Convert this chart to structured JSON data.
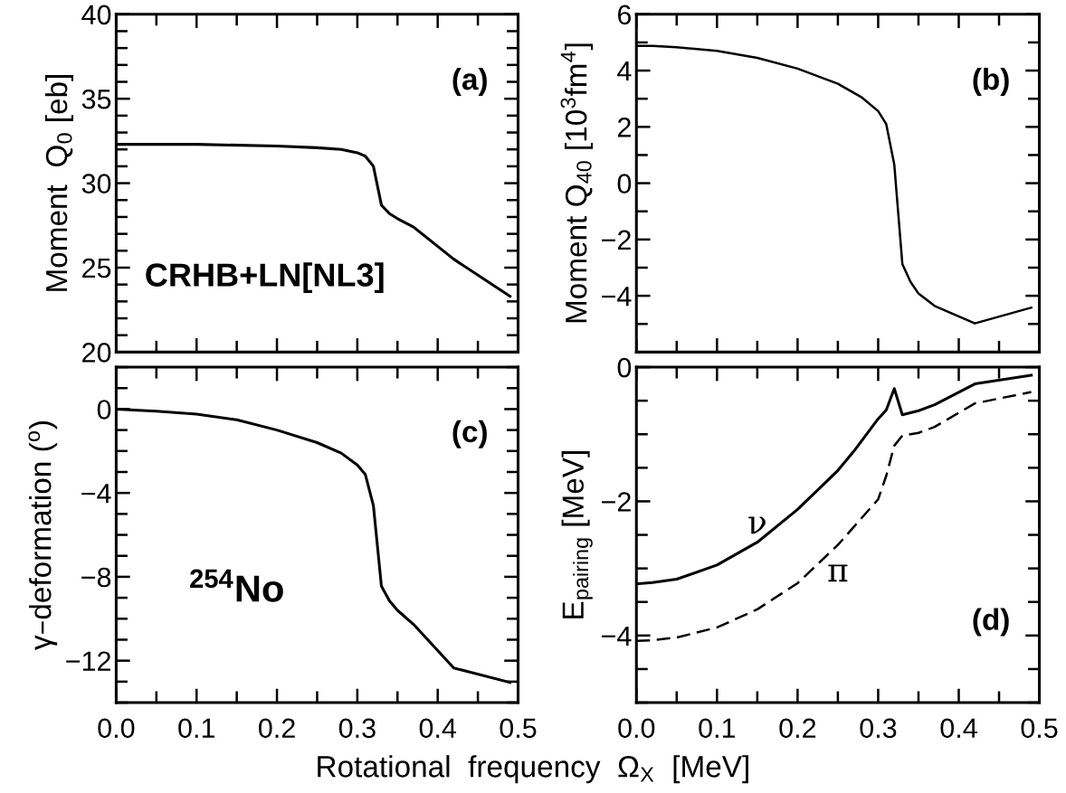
{
  "chart_data": [
    {
      "type": "line",
      "ylabel": "Moment  Q$_{0}$ [eb]",
      "annotations": [
        "(a)",
        "CRHB+LN[NL3]"
      ],
      "x": [
        0,
        0.1,
        0.2,
        0.25,
        0.28,
        0.3,
        0.31,
        0.32,
        0.33,
        0.34,
        0.35,
        0.37,
        0.42,
        0.49
      ],
      "series": [
        {
          "color": "#000000",
          "line_style": "solid",
          "values": [
            32.3,
            32.3,
            32.2,
            32.1,
            32.0,
            31.8,
            31.6,
            31.0,
            28.7,
            28.2,
            27.9,
            27.4,
            25.5,
            23.3
          ]
        }
      ],
      "xlim": [
        0,
        0.5
      ],
      "xticks": [
        0,
        {
          "value": 0.05,
          "label": null
        },
        0.1,
        {
          "value": 0.15,
          "label": null
        },
        0.2,
        {
          "value": 0.25,
          "label": null
        },
        0.3,
        {
          "value": 0.35,
          "label": null
        },
        0.4,
        {
          "value": 0.45,
          "label": null
        },
        0.5
      ],
      "ylim": [
        20,
        40
      ],
      "yticks": [
        20,
        {
          "value": 21,
          "label": null
        },
        {
          "value": 22,
          "label": null
        },
        {
          "value": 23,
          "label": null
        },
        {
          "value": 24,
          "label": null
        },
        25,
        {
          "value": 26,
          "label": null
        },
        {
          "value": 27,
          "label": null
        },
        {
          "value": 28,
          "label": null
        },
        {
          "value": 29,
          "label": null
        },
        30,
        {
          "value": 31,
          "label": null
        },
        {
          "value": 32,
          "label": null
        },
        {
          "value": 33,
          "label": null
        },
        {
          "value": 34,
          "label": null
        },
        35,
        {
          "value": 36,
          "label": null
        },
        {
          "value": 37,
          "label": null
        },
        {
          "value": 38,
          "label": null
        },
        {
          "value": 39,
          "label": null
        },
        40
      ],
      "tick_labels": "y",
      "grid": false,
      "legend": false,
      "marker": "none"
    },
    {
      "type": "line",
      "ylabel": "Moment Q$_{40}$ [10$^{3}$fm$^{4}$]",
      "annotations": [
        "(b)"
      ],
      "x": [
        0,
        0.02,
        0.05,
        0.1,
        0.15,
        0.2,
        0.25,
        0.28,
        0.3,
        0.31,
        0.32,
        0.33,
        0.34,
        0.35,
        0.37,
        0.42,
        0.49
      ],
      "series": [
        {
          "color": "#000000",
          "line_style": "solid",
          "values": [
            4.88,
            4.88,
            4.83,
            4.7,
            4.45,
            4.07,
            3.53,
            3.04,
            2.56,
            2.1,
            0.66,
            -2.87,
            -3.5,
            -3.92,
            -4.36,
            -4.98,
            -4.42
          ]
        }
      ],
      "xlim": [
        0,
        0.5
      ],
      "xticks": [
        0,
        {
          "value": 0.05,
          "label": null
        },
        0.1,
        {
          "value": 0.15,
          "label": null
        },
        0.2,
        {
          "value": 0.25,
          "label": null
        },
        0.3,
        {
          "value": 0.35,
          "label": null
        },
        0.4,
        {
          "value": 0.45,
          "label": null
        },
        0.5
      ],
      "ylim": [
        -6,
        6
      ],
      "yticks": [
        {
          "value": -6,
          "label": null
        },
        {
          "value": -5,
          "label": null
        },
        {
          "value": -4,
          "label": "−4"
        },
        {
          "value": -3,
          "label": null
        },
        {
          "value": -2,
          "label": "−2"
        },
        {
          "value": -1,
          "label": null
        },
        0,
        {
          "value": 1,
          "label": null
        },
        2,
        {
          "value": 3,
          "label": null
        },
        4,
        {
          "value": 5,
          "label": null
        },
        6
      ],
      "tick_labels": "y",
      "grid": false,
      "legend": false,
      "marker": "none"
    },
    {
      "type": "line",
      "xlabel": "Rotational  frequency  Ω$_{X}$  [MeV]",
      "ylabel": "γ–deformation ($^{o}$)",
      "annotations": [
        "(c)",
        "$^{254}$No"
      ],
      "x": [
        0,
        0.05,
        0.1,
        0.15,
        0.2,
        0.25,
        0.28,
        0.3,
        0.31,
        0.32,
        0.33,
        0.34,
        0.35,
        0.37,
        0.42,
        0.49
      ],
      "series": [
        {
          "color": "#000000",
          "line_style": "solid",
          "values": [
            0,
            -0.1,
            -0.24,
            -0.51,
            -1.0,
            -1.6,
            -2.1,
            -2.67,
            -3.12,
            -4.6,
            -8.45,
            -9.15,
            -9.6,
            -10.27,
            -12.35,
            -13.04
          ]
        }
      ],
      "xlim": [
        0,
        0.5
      ],
      "xticks": [
        {
          "value": 0,
          "label": "0.0"
        },
        {
          "value": 0.05,
          "label": null
        },
        0.1,
        {
          "value": 0.15,
          "label": null
        },
        0.2,
        {
          "value": 0.25,
          "label": null
        },
        0.3,
        {
          "value": 0.35,
          "label": null
        },
        0.4,
        {
          "value": 0.45,
          "label": null
        },
        0.5
      ],
      "ylim": [
        -14,
        2
      ],
      "yticks": [
        {
          "value": -14,
          "label": null
        },
        {
          "value": -13,
          "label": null
        },
        {
          "value": -12,
          "label": "−12"
        },
        {
          "value": -11,
          "label": null
        },
        {
          "value": -10,
          "label": null
        },
        {
          "value": -9,
          "label": null
        },
        {
          "value": -8,
          "label": "−8"
        },
        {
          "value": -7,
          "label": null
        },
        {
          "value": -6,
          "label": null
        },
        {
          "value": -5,
          "label": null
        },
        {
          "value": -4,
          "label": "−4"
        },
        {
          "value": -3,
          "label": null
        },
        {
          "value": -2,
          "label": null
        },
        {
          "value": -1,
          "label": null
        },
        0,
        {
          "value": 1,
          "label": null
        },
        {
          "value": 2,
          "label": null
        }
      ],
      "grid": false,
      "legend": false,
      "marker": "none"
    },
    {
      "type": "line",
      "ylabel": "E$_{pairing}$ [MeV]",
      "annotations": [
        "(d)"
      ],
      "series": [
        {
          "name": "ν",
          "color": "#000000",
          "line_style": "solid",
          "x": [
            0,
            0.02,
            0.05,
            0.1,
            0.15,
            0.2,
            0.25,
            0.27,
            0.3,
            0.31,
            0.32,
            0.33,
            0.35,
            0.37,
            0.42,
            0.49
          ],
          "values": [
            -3.23,
            -3.21,
            -3.16,
            -2.95,
            -2.61,
            -2.12,
            -1.54,
            -1.25,
            -0.77,
            -0.64,
            -0.32,
            -0.71,
            -0.65,
            -0.56,
            -0.25,
            -0.12
          ]
        },
        {
          "name": "π",
          "color": "#000000",
          "line_style": "dashed",
          "x": [
            0,
            0.02,
            0.05,
            0.1,
            0.15,
            0.2,
            0.25,
            0.3,
            0.31,
            0.32,
            0.33,
            0.35,
            0.37,
            0.42,
            0.49
          ],
          "values": [
            -4.08,
            -4.07,
            -4.03,
            -3.88,
            -3.61,
            -3.22,
            -2.65,
            -1.97,
            -1.62,
            -1.17,
            -1.02,
            -0.98,
            -0.89,
            -0.54,
            -0.37
          ]
        }
      ],
      "xlim": [
        0,
        0.5
      ],
      "xticks": [
        {
          "value": 0,
          "label": "0.0"
        },
        {
          "value": 0.05,
          "label": null
        },
        0.1,
        {
          "value": 0.15,
          "label": null
        },
        0.2,
        {
          "value": 0.25,
          "label": null
        },
        0.3,
        {
          "value": 0.35,
          "label": null
        },
        0.4,
        {
          "value": 0.45,
          "label": null
        },
        0.5
      ],
      "ylim": [
        -5,
        0
      ],
      "yticks": [
        {
          "value": -5,
          "label": null
        },
        {
          "value": -4.5,
          "label": null
        },
        {
          "value": -4,
          "label": "−4"
        },
        {
          "value": -3.5,
          "label": null
        },
        {
          "value": -3,
          "label": null
        },
        {
          "value": -2.5,
          "label": null
        },
        {
          "value": -2,
          "label": "−2"
        },
        {
          "value": -1.5,
          "label": null
        },
        {
          "value": -1,
          "label": null
        },
        {
          "value": -0.5,
          "label": null
        },
        0
      ],
      "grid": false,
      "legend": false,
      "marker": "none"
    }
  ]
}
